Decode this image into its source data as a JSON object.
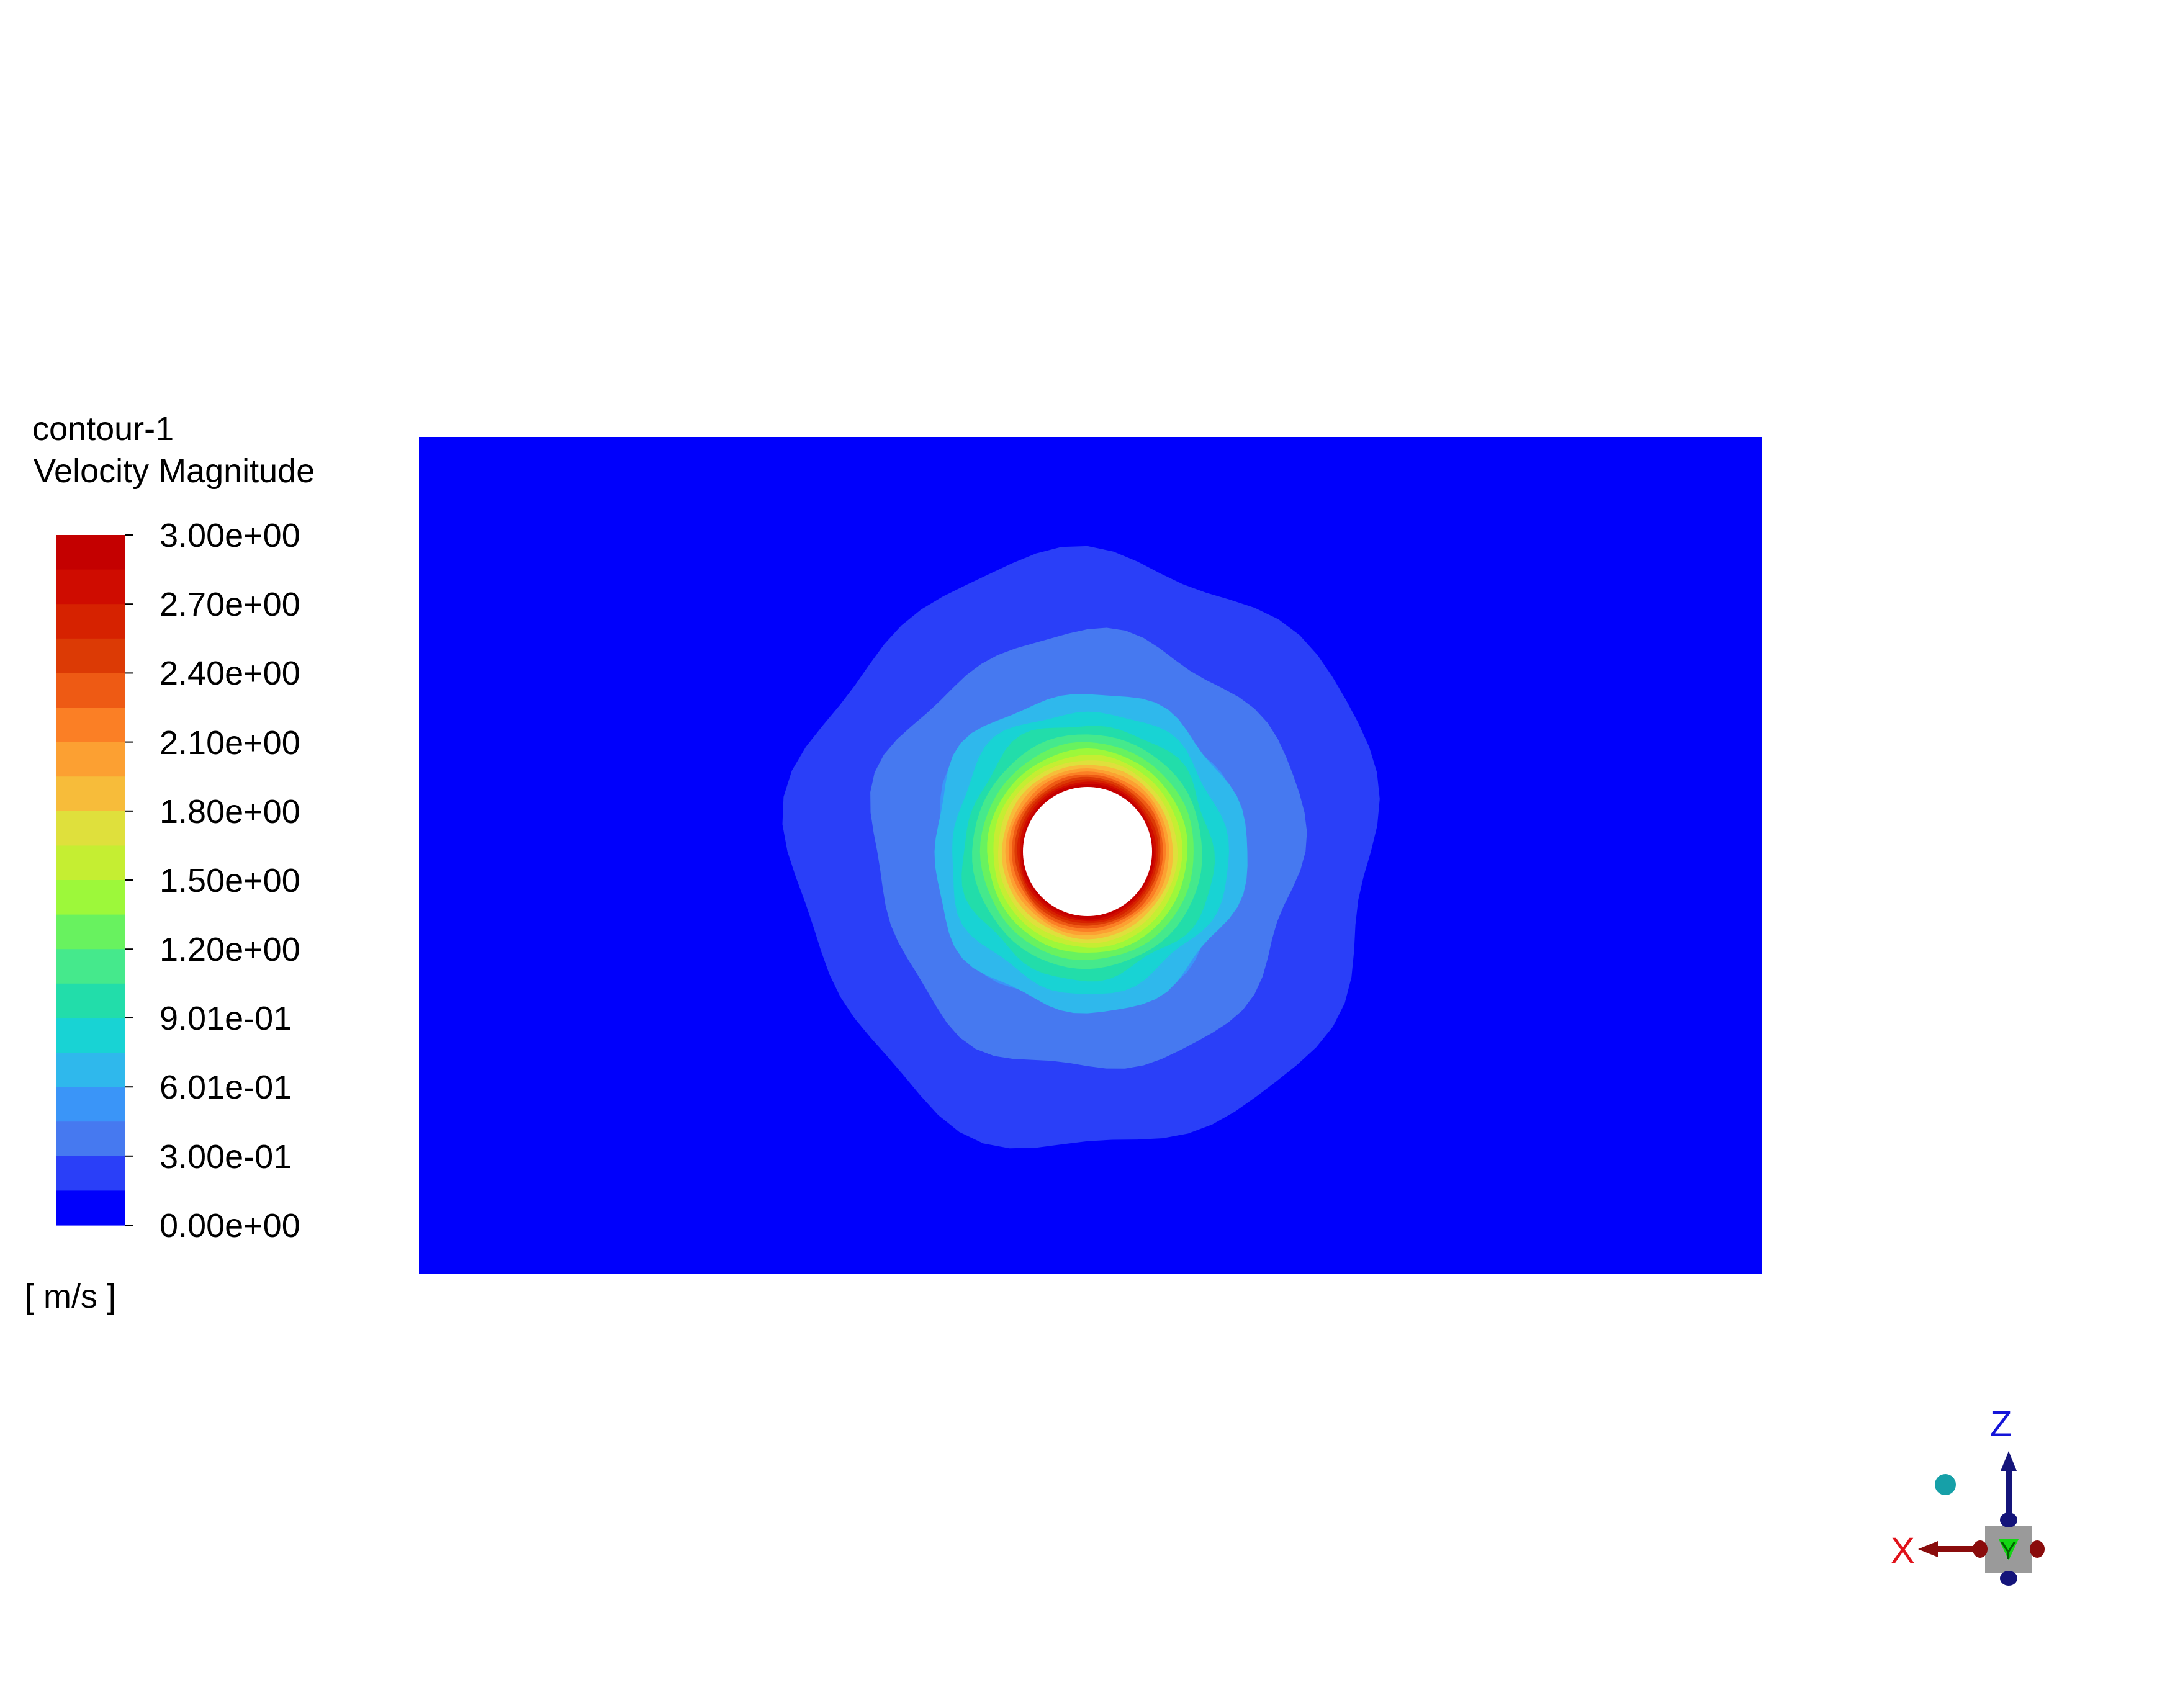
{
  "chart_data": {
    "type": "heatmap",
    "subtype": "contour",
    "title": "contour-1",
    "variable": "Velocity Magnitude",
    "units": "[ m/s ]",
    "range": [
      0.0,
      3.0
    ],
    "levels": 20,
    "tick_labels": [
      "3.00e+00",
      "2.70e+00",
      "2.40e+00",
      "2.10e+00",
      "1.80e+00",
      "1.50e+00",
      "1.20e+00",
      "9.01e-01",
      "6.01e-01",
      "3.00e-01",
      "0.00e+00"
    ],
    "tick_values": [
      3.0,
      2.7,
      2.4,
      2.1,
      1.8,
      1.5,
      1.2,
      0.901,
      0.601,
      0.3,
      0.0
    ],
    "colormap_bands_top_to_bottom": [
      "#c40000",
      "#cf0c00",
      "#d62200",
      "#dc3a05",
      "#ee5a14",
      "#fb7f25",
      "#fca032",
      "#f7bc3a",
      "#dfe03c",
      "#c5ee32",
      "#9df83a",
      "#68f25f",
      "#45e98c",
      "#22ddaa",
      "#18d3d4",
      "#2fb8ec",
      "#3a95f8",
      "#4679f0",
      "#2a3ff8",
      "#0000fc"
    ],
    "field_background_color": "#0000fc",
    "hole_color": "#ffffff"
  },
  "axes_triad": {
    "x_label": "X",
    "y_label": "Y",
    "z_label": "Z",
    "x_color": "#e0121a",
    "y_color": "#14d614",
    "z_color": "#1414d8"
  }
}
